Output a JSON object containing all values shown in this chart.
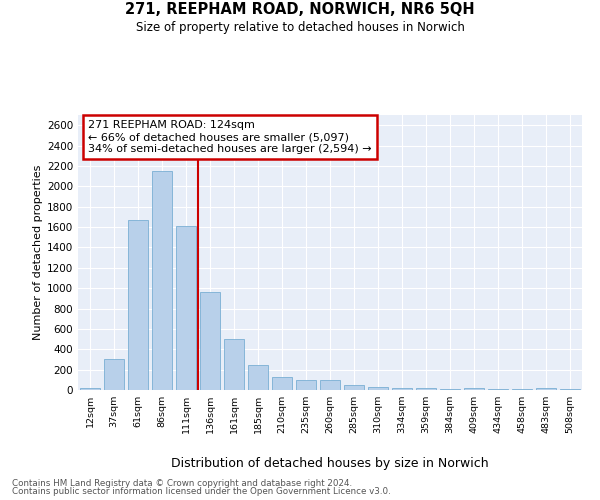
{
  "title": "271, REEPHAM ROAD, NORWICH, NR6 5QH",
  "subtitle": "Size of property relative to detached houses in Norwich",
  "xlabel": "Distribution of detached houses by size in Norwich",
  "ylabel": "Number of detached properties",
  "categories": [
    "12sqm",
    "37sqm",
    "61sqm",
    "86sqm",
    "111sqm",
    "136sqm",
    "161sqm",
    "185sqm",
    "210sqm",
    "235sqm",
    "260sqm",
    "285sqm",
    "310sqm",
    "334sqm",
    "359sqm",
    "384sqm",
    "409sqm",
    "434sqm",
    "458sqm",
    "483sqm",
    "508sqm"
  ],
  "values": [
    20,
    300,
    1670,
    2150,
    1610,
    960,
    500,
    245,
    125,
    100,
    100,
    50,
    25,
    15,
    20,
    10,
    15,
    10,
    5,
    20,
    5
  ],
  "bar_color": "#b8d0ea",
  "bar_edge_color": "#7aafd4",
  "red_line_x": 4.5,
  "ylim": [
    0,
    2700
  ],
  "yticks": [
    0,
    200,
    400,
    600,
    800,
    1000,
    1200,
    1400,
    1600,
    1800,
    2000,
    2200,
    2400,
    2600
  ],
  "annotation_title": "271 REEPHAM ROAD: 124sqm",
  "annotation_line1": "← 66% of detached houses are smaller (5,097)",
  "annotation_line2": "34% of semi-detached houses are larger (2,594) →",
  "annotation_box_color": "#ffffff",
  "annotation_box_edge": "#cc0000",
  "red_line_color": "#cc0000",
  "footnote1": "Contains HM Land Registry data © Crown copyright and database right 2024.",
  "footnote2": "Contains public sector information licensed under the Open Government Licence v3.0.",
  "background_color": "#e8eef8",
  "grid_color": "#ffffff",
  "fig_bg_color": "#ffffff"
}
